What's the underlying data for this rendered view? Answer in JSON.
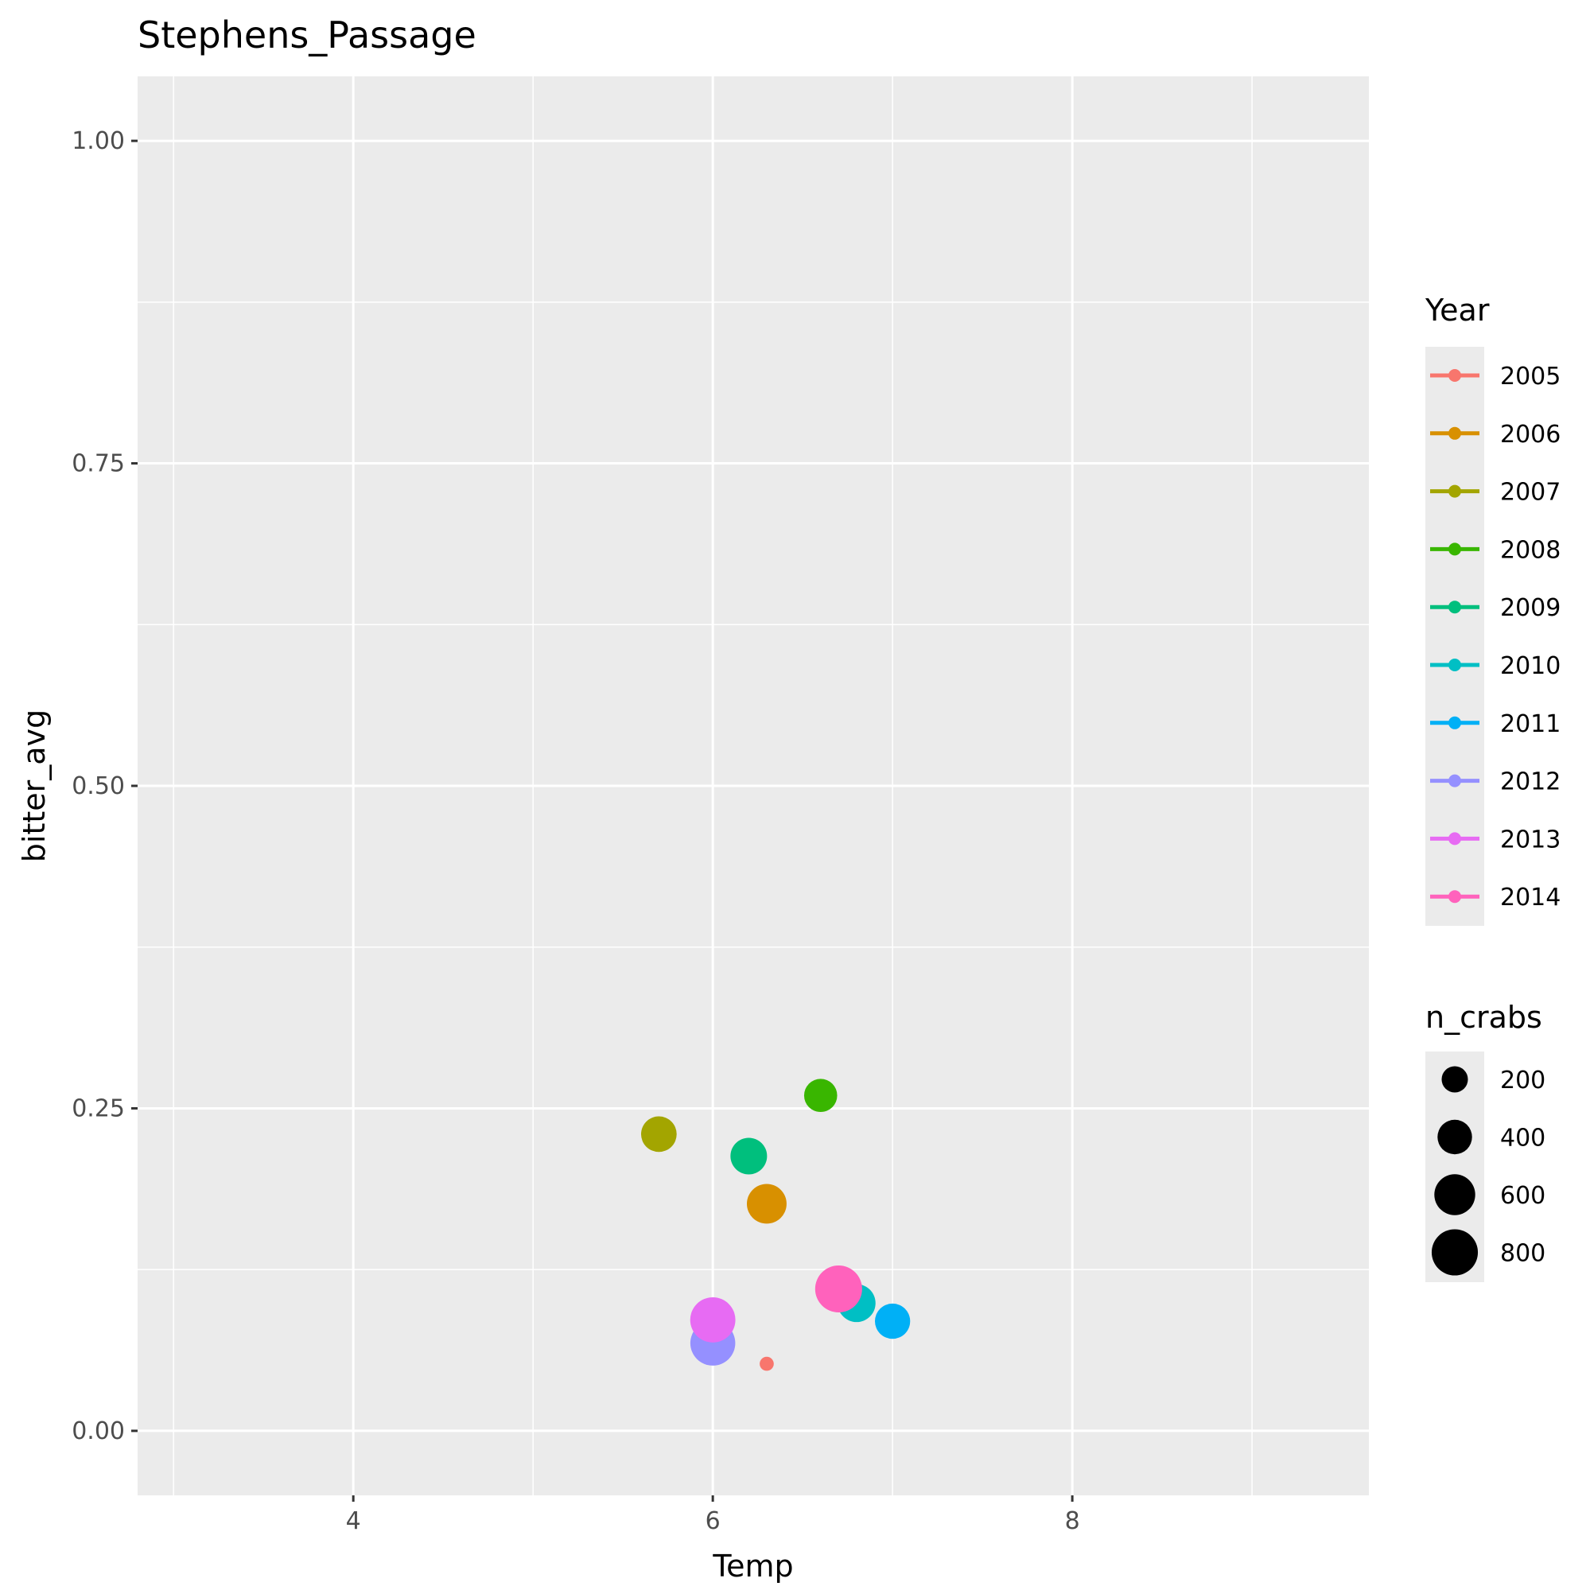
{
  "chart_data": {
    "type": "scatter",
    "title": "Stephens_Passage",
    "xlabel": "Temp",
    "ylabel": "bitter_avg",
    "xlim": [
      2.8,
      9.65
    ],
    "ylim": [
      -0.05,
      1.05
    ],
    "x_ticks": [
      4,
      6,
      8
    ],
    "x_tick_labels": [
      "4",
      "6",
      "8"
    ],
    "x_minor": [
      3,
      5,
      7,
      9
    ],
    "y_ticks": [
      0,
      0.25,
      0.5,
      0.75,
      1.0
    ],
    "y_tick_labels": [
      "0.00",
      "0.25",
      "0.50",
      "0.75",
      "1.00"
    ],
    "y_minor": [
      0.125,
      0.375,
      0.625,
      0.875
    ],
    "grid": true,
    "panel_background": "#ebebeb",
    "points": [
      {
        "year": "2005",
        "x": 6.3,
        "y": 0.052,
        "n_crabs": 30
      },
      {
        "year": "2006",
        "x": 6.3,
        "y": 0.176,
        "n_crabs": 560
      },
      {
        "year": "2007",
        "x": 5.7,
        "y": 0.23,
        "n_crabs": 430
      },
      {
        "year": "2008",
        "x": 6.6,
        "y": 0.26,
        "n_crabs": 360
      },
      {
        "year": "2009",
        "x": 6.2,
        "y": 0.213,
        "n_crabs": 460
      },
      {
        "year": "2010",
        "x": 6.8,
        "y": 0.099,
        "n_crabs": 500
      },
      {
        "year": "2011",
        "x": 7.0,
        "y": 0.085,
        "n_crabs": 420
      },
      {
        "year": "2012",
        "x": 6.0,
        "y": 0.068,
        "n_crabs": 750
      },
      {
        "year": "2013",
        "x": 6.0,
        "y": 0.086,
        "n_crabs": 760
      },
      {
        "year": "2014",
        "x": 6.7,
        "y": 0.11,
        "n_crabs": 830
      }
    ],
    "color_legend": {
      "title": "Year",
      "entries": [
        {
          "label": "2005",
          "color": "#F8766D"
        },
        {
          "label": "2006",
          "color": "#D89000"
        },
        {
          "label": "2007",
          "color": "#A3A500"
        },
        {
          "label": "2008",
          "color": "#39B600"
        },
        {
          "label": "2009",
          "color": "#00BF7D"
        },
        {
          "label": "2010",
          "color": "#00BFC4"
        },
        {
          "label": "2011",
          "color": "#00B0F6"
        },
        {
          "label": "2012",
          "color": "#9590FF"
        },
        {
          "label": "2013",
          "color": "#E76BF3"
        },
        {
          "label": "2014",
          "color": "#FF62BC"
        }
      ]
    },
    "size_legend": {
      "title": "n_crabs",
      "entries": [
        {
          "label": "200",
          "value": 200
        },
        {
          "label": "400",
          "value": 400
        },
        {
          "label": "600",
          "value": 600
        },
        {
          "label": "800",
          "value": 800
        }
      ]
    },
    "legend_position": "right"
  }
}
